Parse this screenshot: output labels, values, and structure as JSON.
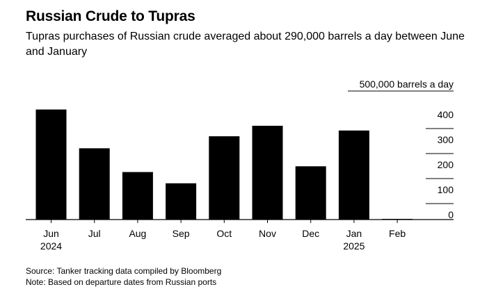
{
  "title": "Russian Crude to Tupras",
  "subtitle": "Tupras purchases of Russian crude averaged about 290,000 barrels a day between June and January",
  "source": "Source: Tanker tracking data compiled by Bloomberg",
  "note": "Note: Based on departure dates from Russian ports",
  "chart_data": {
    "type": "bar",
    "categories": [
      "Jun",
      "Jul",
      "Aug",
      "Sep",
      "Oct",
      "Nov",
      "Dec",
      "Jan",
      "Feb"
    ],
    "category_sublabels": [
      "2024",
      "",
      "",
      "",
      "",
      "",
      "",
      "2025",
      ""
    ],
    "values": [
      440,
      285,
      190,
      145,
      333,
      375,
      213,
      356,
      0
    ],
    "ylim": [
      0,
      500
    ],
    "yticks": [
      0,
      100,
      200,
      300,
      400
    ],
    "ytick_labels": [
      "0",
      "100",
      "200",
      "300",
      "400"
    ],
    "top_tick_label": "500,000 barrels a day",
    "bar_color": "#000000",
    "gridlines": true,
    "axis_side": "right"
  }
}
